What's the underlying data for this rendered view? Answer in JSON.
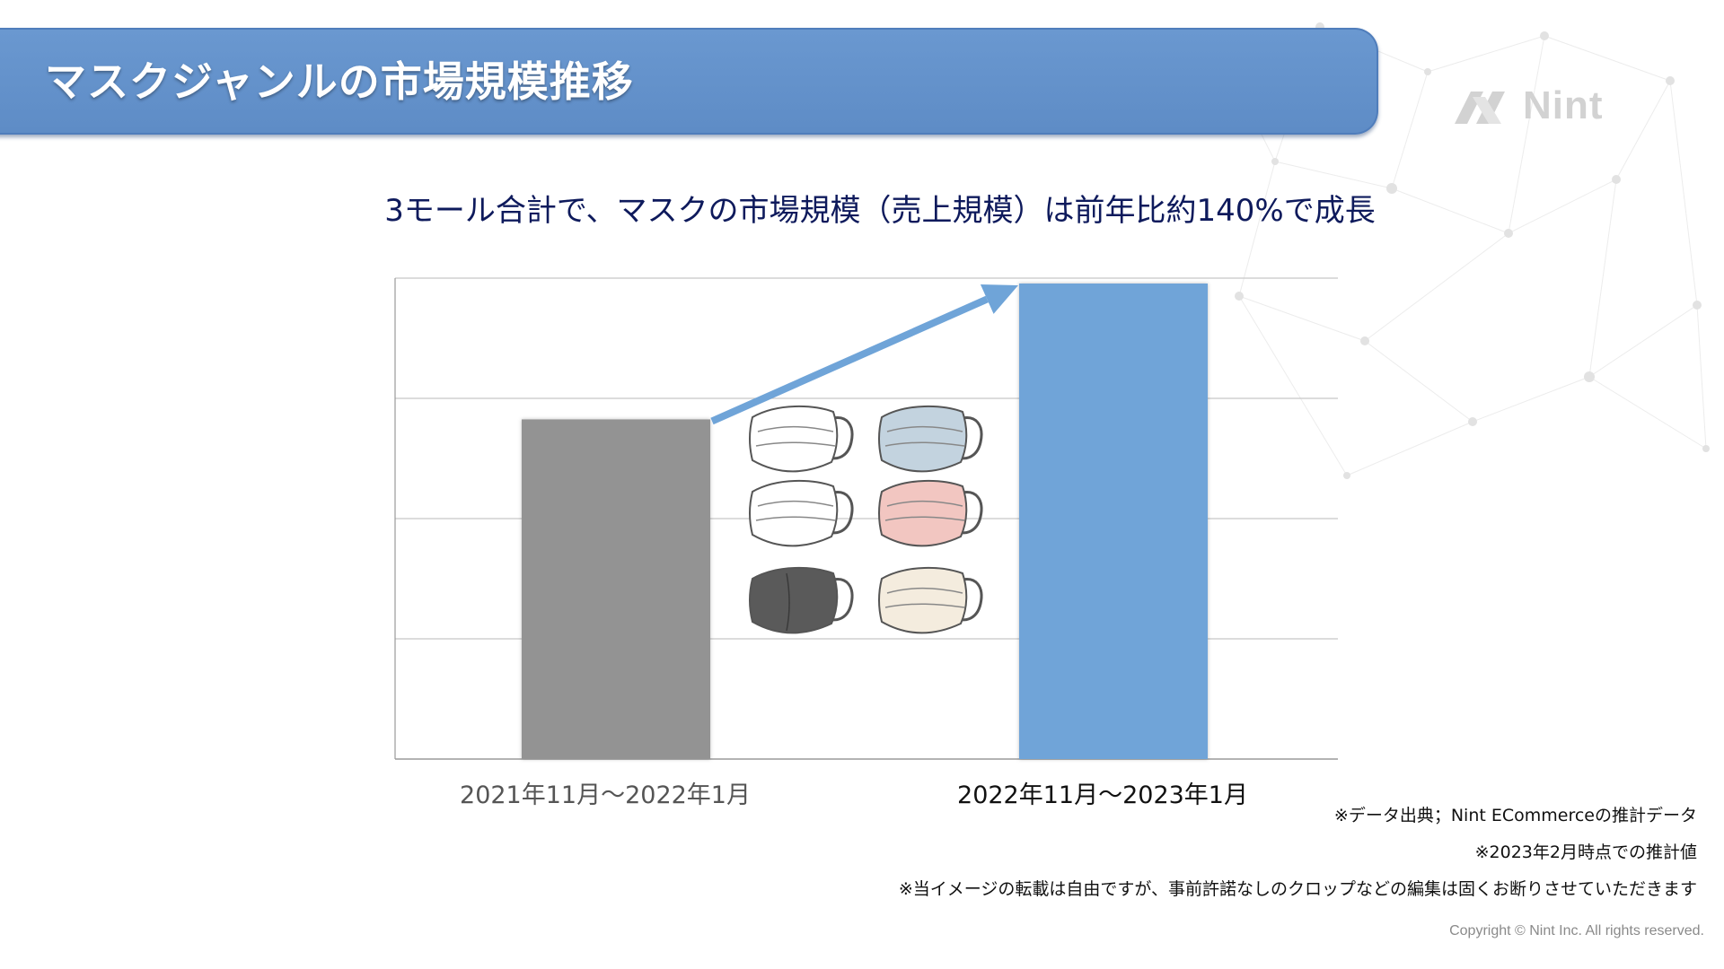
{
  "header": {
    "title": "マスクジャンルの市場規模推移",
    "logo_text": "Nint",
    "banner_color": "#6a98d0"
  },
  "subtitle": "3モール合計で、マスクの市場規模（売上規模）は前年比約140%で成長",
  "chart_data": {
    "type": "bar",
    "title": "",
    "xlabel": "",
    "ylabel": "",
    "categories": [
      "2021年11月〜2022年1月",
      "2022年11月〜2023年1月"
    ],
    "values": [
      100,
      140
    ],
    "ylim": [
      0,
      140
    ],
    "grid": true,
    "y_gridlines": 4,
    "bar_colors": [
      "#939393",
      "#6fa4d8"
    ],
    "trend_arrow": true,
    "trend_arrow_color": "#6fa4d8"
  },
  "illustration": {
    "icon": "face-mask-icon",
    "mask_colors": [
      "#ffffff",
      "#c3d3df",
      "#ffffff",
      "#f2c6c1",
      "#5a5a5a",
      "#f4ecde"
    ]
  },
  "notes": [
    "※データ出典；Nint ECommerceの推計データ",
    "※2023年2月時点での推計値",
    "※当イメージの転載は自由ですが、事前許諾なしのクロップなどの編集は固くお断りさせていただきます"
  ],
  "copyright": "Copyright © Nint Inc. All rights reserved."
}
